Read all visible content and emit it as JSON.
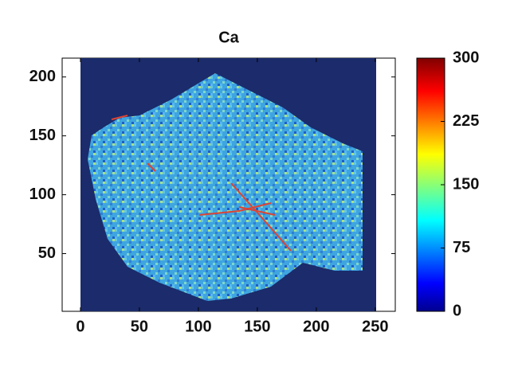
{
  "chart_data": {
    "type": "heatmap",
    "title": "Ca",
    "xlim": [
      -15.5,
      267
    ],
    "xticks": [
      0,
      50,
      100,
      150,
      200,
      250
    ],
    "ylim": [
      1,
      216
    ],
    "yticks": [
      50,
      100,
      150,
      200
    ],
    "colorbar": {
      "lim": [
        0,
        300
      ],
      "ticks": [
        0,
        75,
        150,
        225,
        300
      ]
    }
  }
}
